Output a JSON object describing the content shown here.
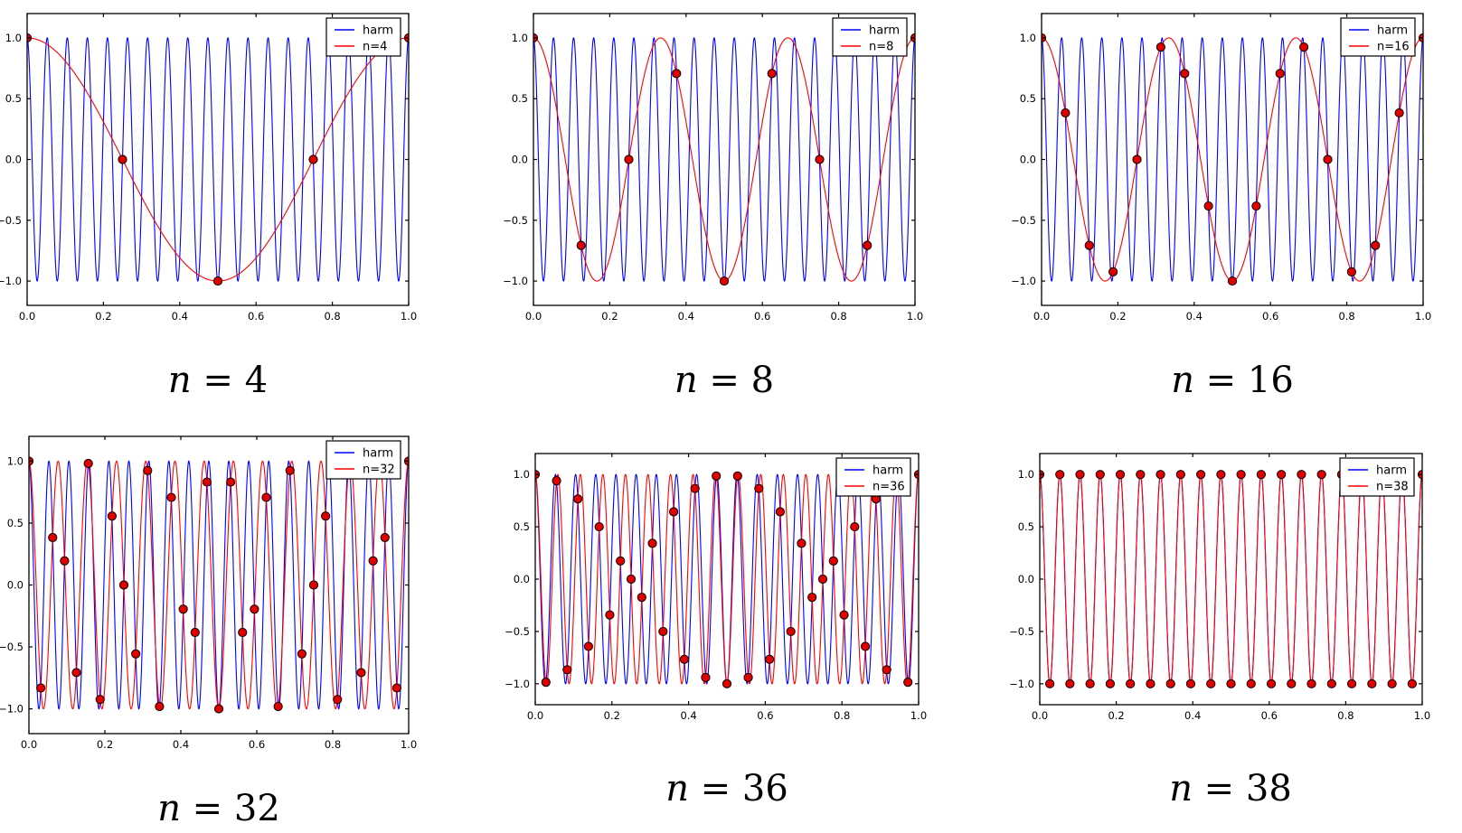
{
  "figure": {
    "background": "#ffffff",
    "description": "Six line plots demonstrating aliasing of a 19 Hz cosine harmonic sampled with n points on [0,1]"
  },
  "chart_data": {
    "type": "line",
    "title": "",
    "xlabel": "",
    "ylabel": "",
    "x_range": [
      0.0,
      1.0
    ],
    "y_range": [
      -1.2,
      1.2
    ],
    "x_ticks": [
      0.0,
      0.2,
      0.4,
      0.6,
      0.8,
      1.0
    ],
    "y_ticks": [
      -1.0,
      -0.5,
      0.0,
      0.5,
      1.0
    ],
    "grid": false,
    "legend_position": "upper right",
    "harmonic": {
      "name": "harm",
      "frequency": 19,
      "amplitude": 1.0,
      "color": "#0000ff"
    },
    "sampled_line_color": "#ff0000",
    "marker": {
      "shape": "circle",
      "fill": "#e00000",
      "edge": "#000000",
      "radius": 4.6
    },
    "panels": [
      {
        "n": 4,
        "alias_frequency": 1,
        "caption": "n = 4",
        "legend": [
          "harm",
          "n=4"
        ],
        "samples": {
          "x": [
            0,
            0.25,
            0.5,
            0.75,
            1
          ],
          "y": [
            1,
            0,
            -1,
            0,
            1
          ]
        }
      },
      {
        "n": 8,
        "alias_frequency": 3,
        "caption": "n = 8",
        "legend": [
          "harm",
          "n=8"
        ],
        "samples": {
          "x": [
            0,
            0.125,
            0.25,
            0.375,
            0.5,
            0.625,
            0.75,
            0.875,
            1
          ],
          "y": [
            1,
            -0.707,
            0,
            0.707,
            -1,
            0.707,
            0,
            -0.707,
            1
          ]
        }
      },
      {
        "n": 16,
        "alias_frequency": 3,
        "caption": "n = 16",
        "legend": [
          "harm",
          "n=16"
        ],
        "samples": {
          "x": [
            0,
            0.0625,
            0.125,
            0.1875,
            0.25,
            0.3125,
            0.375,
            0.4375,
            0.5,
            0.5625,
            0.625,
            0.6875,
            0.75,
            0.8125,
            0.875,
            0.9375,
            1
          ],
          "y": [
            1,
            0.383,
            -0.707,
            -0.924,
            0,
            0.924,
            0.707,
            -0.383,
            -1,
            -0.383,
            0.707,
            0.924,
            0,
            -0.924,
            -0.707,
            0.383,
            1
          ]
        }
      },
      {
        "n": 32,
        "alias_frequency": 13,
        "caption": "n = 32",
        "legend": [
          "harm",
          "n=32"
        ],
        "samples": {
          "x": [
            0,
            0.0313,
            0.0625,
            0.0938,
            0.125,
            0.1563,
            0.1875,
            0.2188,
            0.25,
            0.2813,
            0.3125,
            0.3438,
            0.375,
            0.4063,
            0.4375,
            0.4688,
            0.5,
            0.5313,
            0.5625,
            0.5938,
            0.625,
            0.6563,
            0.6875,
            0.7188,
            0.75,
            0.7813,
            0.8125,
            0.8438,
            0.875,
            0.9063,
            0.9375,
            0.9688,
            1
          ],
          "y": [
            1,
            -0.831,
            0.383,
            0.195,
            -0.707,
            0.981,
            -0.924,
            0.556,
            0,
            -0.556,
            0.924,
            -0.981,
            0.707,
            -0.195,
            -0.383,
            0.831,
            -1,
            0.831,
            -0.383,
            -0.195,
            0.707,
            -0.981,
            0.924,
            -0.556,
            0,
            0.556,
            -0.924,
            0.981,
            -0.707,
            0.195,
            0.383,
            -0.831,
            1
          ]
        }
      },
      {
        "n": 36,
        "alias_frequency": 17,
        "caption": "n = 36",
        "legend": [
          "harm",
          "n=36"
        ],
        "samples": {
          "x": [
            0,
            0.0278,
            0.0556,
            0.0833,
            0.1111,
            0.1389,
            0.1667,
            0.1944,
            0.2222,
            0.25,
            0.2778,
            0.3056,
            0.3333,
            0.3611,
            0.3889,
            0.4167,
            0.4444,
            0.4722,
            0.5,
            0.5278,
            0.5556,
            0.5833,
            0.6111,
            0.6389,
            0.6667,
            0.6944,
            0.7222,
            0.75,
            0.7778,
            0.8056,
            0.8333,
            0.8611,
            0.8889,
            0.9167,
            0.9444,
            0.9722,
            1
          ],
          "y": [
            1,
            -0.985,
            0.94,
            -0.866,
            0.766,
            -0.643,
            0.5,
            -0.342,
            0.174,
            0,
            -0.174,
            0.342,
            -0.5,
            0.643,
            -0.766,
            0.866,
            -0.94,
            0.985,
            -1,
            0.985,
            -0.94,
            0.866,
            -0.766,
            0.643,
            -0.5,
            0.342,
            -0.174,
            0,
            0.174,
            -0.342,
            0.5,
            -0.643,
            0.766,
            -0.866,
            0.94,
            -0.985,
            1
          ]
        }
      },
      {
        "n": 38,
        "alias_frequency": 19,
        "caption": "n = 38",
        "legend": [
          "harm",
          "n=38"
        ],
        "samples": {
          "x": [
            0,
            0.0263,
            0.0526,
            0.0789,
            0.1053,
            0.1316,
            0.1579,
            0.1842,
            0.2105,
            0.2368,
            0.2632,
            0.2895,
            0.3158,
            0.3421,
            0.3684,
            0.3947,
            0.4211,
            0.4474,
            0.4737,
            0.5,
            0.5263,
            0.5526,
            0.5789,
            0.6053,
            0.6316,
            0.6579,
            0.6842,
            0.7105,
            0.7368,
            0.7632,
            0.7895,
            0.8158,
            0.8421,
            0.8684,
            0.8947,
            0.9211,
            0.9474,
            0.9737,
            1
          ],
          "y": [
            1,
            -1,
            1,
            -1,
            1,
            -1,
            1,
            -1,
            1,
            -1,
            1,
            -1,
            1,
            -1,
            1,
            -1,
            1,
            -1,
            1,
            -1,
            1,
            -1,
            1,
            -1,
            1,
            -1,
            1,
            -1,
            1,
            -1,
            1,
            -1,
            1,
            -1,
            1,
            -1,
            1,
            -1,
            1
          ]
        }
      }
    ]
  }
}
